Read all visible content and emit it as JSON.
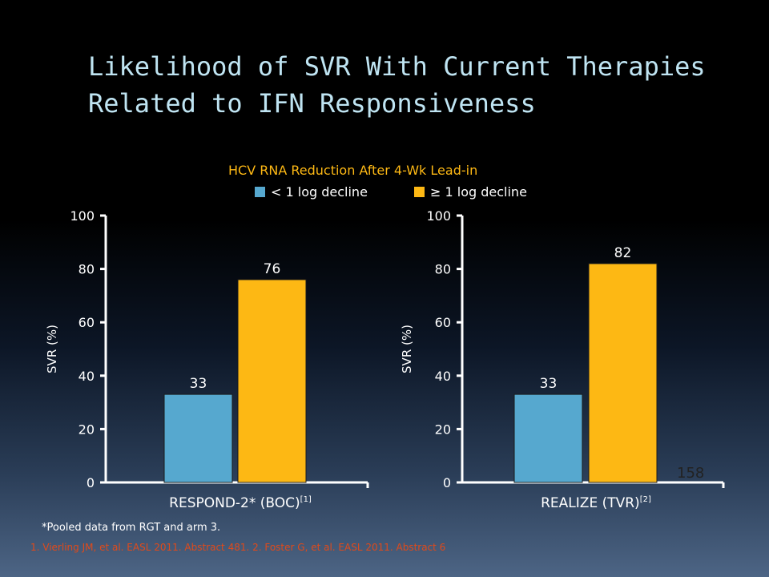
{
  "title": {
    "line1": "Likelihood of SVR With Current Therapies",
    "line2": "Related to IFN Responsiveness"
  },
  "legend": {
    "title": "HCV RNA Reduction After 4-Wk Lead-in",
    "items": [
      {
        "label": "< 1 log decline",
        "color": "#56a8cf"
      },
      {
        "label": "≥ 1 log decline",
        "color": "#fdb814"
      }
    ]
  },
  "chart_data": [
    {
      "type": "bar",
      "title": "",
      "xlabel": "RESPOND-2* (BOC)",
      "xlabel_sup": "[1]",
      "ylabel": "SVR (%)",
      "ylim": [
        0,
        100
      ],
      "yticks": [
        "0",
        "20",
        "40",
        "60",
        "80",
        "100"
      ],
      "series": [
        {
          "name": "< 1 log decline",
          "values": [
            33
          ]
        },
        {
          "name": "≥ 1 log decline",
          "values": [
            76
          ]
        }
      ],
      "data_labels": [
        "33",
        "76"
      ]
    },
    {
      "type": "bar",
      "title": "",
      "xlabel": "REALIZE (TVR)",
      "xlabel_sup": "[2]",
      "ylabel": "SVR (%)",
      "ylim": [
        0,
        100
      ],
      "yticks": [
        "0",
        "20",
        "40",
        "60",
        "80",
        "100"
      ],
      "series": [
        {
          "name": "< 1 log decline",
          "values": [
            33
          ]
        },
        {
          "name": "≥ 1 log decline",
          "values": [
            82
          ]
        }
      ],
      "data_labels": [
        "33",
        "82"
      ]
    }
  ],
  "footnote": "*Pooled data from RGT and arm 3.",
  "references": "1. Vierling JM, et al. EASL 2011. Abstract 481. 2. Foster G, et al. EASL 2011. Abstract 6",
  "slide_number": "158"
}
